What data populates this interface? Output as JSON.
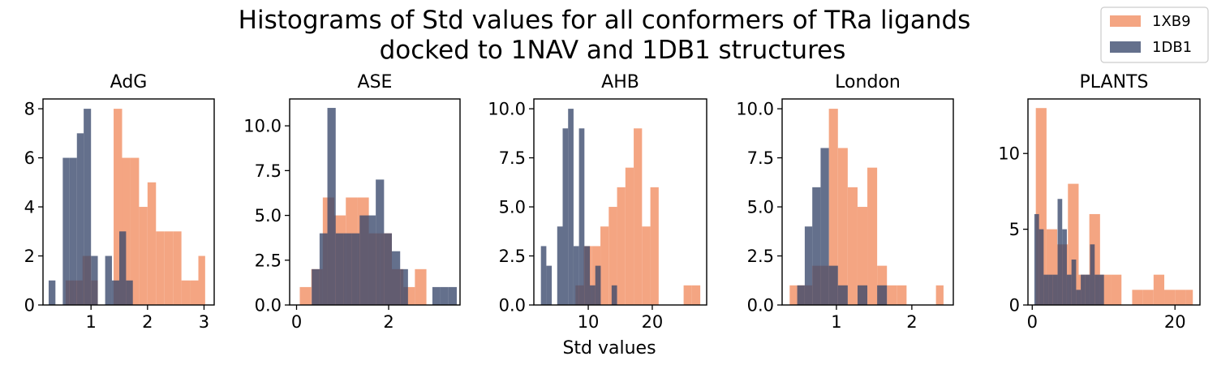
{
  "figure": {
    "title_lines": [
      "Histograms of Std values for all conformers of TRa ligands",
      "docked to 1NAV and 1DB1 structures"
    ],
    "xlabel": "Std values",
    "legend_position": "top-right"
  },
  "colors": {
    "1XB9": "#f4a582",
    "1DB1": "#39486b",
    "overlap": "#6e4b5c"
  },
  "legend": [
    {
      "name": "1XB9",
      "color": "#f4a582"
    },
    {
      "name": "1DB1",
      "color": "#39486b"
    }
  ],
  "chart_data": [
    {
      "type": "histogram",
      "title": "AdG",
      "xlim": [
        0.15,
        3.18
      ],
      "ylim": [
        0,
        8.4
      ],
      "xticks": [
        1,
        2,
        3
      ],
      "yticks": [
        0,
        2,
        4,
        6,
        8
      ],
      "series": [
        {
          "name": "1XB9",
          "bins": [
            [
              0.55,
              0.7,
              1
            ],
            [
              0.7,
              0.85,
              1
            ],
            [
              0.85,
              1.0,
              2
            ],
            [
              1.0,
              1.12,
              1
            ],
            [
              1.12,
              1.25,
              0
            ],
            [
              1.25,
              1.4,
              0
            ],
            [
              1.4,
              1.55,
              8
            ],
            [
              1.55,
              1.7,
              6
            ],
            [
              1.7,
              1.85,
              6
            ],
            [
              1.85,
              2.0,
              4
            ],
            [
              2.0,
              2.15,
              5
            ],
            [
              2.15,
              2.3,
              3
            ],
            [
              2.3,
              2.45,
              3
            ],
            [
              2.45,
              2.6,
              3
            ],
            [
              2.6,
              2.75,
              1
            ],
            [
              2.75,
              2.9,
              1
            ],
            [
              2.9,
              3.02,
              2
            ]
          ]
        },
        {
          "name": "1DB1",
          "bins": [
            [
              0.25,
              0.37,
              1
            ],
            [
              0.37,
              0.5,
              0
            ],
            [
              0.5,
              0.62,
              6
            ],
            [
              0.62,
              0.75,
              6
            ],
            [
              0.75,
              0.87,
              7
            ],
            [
              0.87,
              1.0,
              8
            ],
            [
              1.0,
              1.12,
              2
            ],
            [
              1.12,
              1.25,
              0
            ],
            [
              1.25,
              1.37,
              2
            ],
            [
              1.37,
              1.5,
              1
            ],
            [
              1.5,
              1.62,
              3
            ],
            [
              1.62,
              1.74,
              1
            ]
          ]
        }
      ]
    },
    {
      "type": "histogram",
      "title": "ASE",
      "xlim": [
        -0.15,
        3.55
      ],
      "ylim": [
        0,
        11.5
      ],
      "xticks": [
        0,
        2
      ],
      "yticks": [
        0.0,
        2.5,
        5.0,
        7.5,
        10.0
      ],
      "series": [
        {
          "name": "1XB9",
          "bins": [
            [
              0.07,
              0.32,
              1
            ],
            [
              0.32,
              0.57,
              2
            ],
            [
              0.57,
              0.82,
              6
            ],
            [
              0.82,
              1.07,
              5
            ],
            [
              1.07,
              1.32,
              6
            ],
            [
              1.32,
              1.57,
              6
            ],
            [
              1.57,
              1.82,
              4
            ],
            [
              1.82,
              2.07,
              4
            ],
            [
              2.07,
              2.32,
              2
            ],
            [
              2.32,
              2.57,
              1
            ],
            [
              2.57,
              2.82,
              2
            ],
            [
              2.82,
              3.07,
              0
            ]
          ]
        },
        {
          "name": "1DB1",
          "bins": [
            [
              0.33,
              0.5,
              2
            ],
            [
              0.5,
              0.67,
              4
            ],
            [
              0.67,
              0.85,
              11
            ],
            [
              0.85,
              1.02,
              4
            ],
            [
              1.02,
              1.2,
              4
            ],
            [
              1.2,
              1.37,
              4
            ],
            [
              1.37,
              1.55,
              5
            ],
            [
              1.55,
              1.72,
              5
            ],
            [
              1.72,
              1.9,
              7
            ],
            [
              1.9,
              2.07,
              4
            ],
            [
              2.07,
              2.25,
              3
            ],
            [
              2.25,
              2.42,
              2
            ],
            [
              2.42,
              2.6,
              0
            ],
            [
              2.6,
              2.77,
              0
            ],
            [
              2.77,
              2.95,
              0
            ],
            [
              2.95,
              3.12,
              1
            ],
            [
              3.12,
              3.3,
              1
            ],
            [
              3.3,
              3.48,
              1
            ]
          ]
        }
      ]
    },
    {
      "type": "histogram",
      "title": "AHB",
      "xlim": [
        1.5,
        28.5
      ],
      "ylim": [
        0,
        10.5
      ],
      "xticks": [
        10,
        20
      ],
      "yticks": [
        0.0,
        2.5,
        5.0,
        7.5,
        10.0
      ],
      "series": [
        {
          "name": "1XB9",
          "bins": [
            [
              8.0,
              9.3,
              1
            ],
            [
              9.3,
              10.6,
              3
            ],
            [
              10.6,
              11.9,
              3
            ],
            [
              11.9,
              13.2,
              4
            ],
            [
              13.2,
              14.5,
              5
            ],
            [
              14.5,
              15.8,
              6
            ],
            [
              15.8,
              17.1,
              7
            ],
            [
              17.1,
              18.4,
              9
            ],
            [
              18.4,
              19.7,
              4
            ],
            [
              19.7,
              21.0,
              6
            ],
            [
              21.0,
              22.3,
              0
            ],
            [
              22.3,
              23.6,
              0
            ],
            [
              23.6,
              24.9,
              0
            ],
            [
              24.9,
              26.2,
              1
            ],
            [
              26.2,
              27.5,
              1
            ]
          ]
        },
        {
          "name": "1DB1",
          "bins": [
            [
              2.6,
              3.45,
              3
            ],
            [
              3.45,
              4.3,
              2
            ],
            [
              4.3,
              5.15,
              0
            ],
            [
              5.15,
              6.0,
              4
            ],
            [
              6.0,
              6.85,
              9
            ],
            [
              6.85,
              7.7,
              10
            ],
            [
              7.7,
              8.55,
              3
            ],
            [
              8.55,
              9.4,
              9
            ],
            [
              9.4,
              10.25,
              3
            ],
            [
              10.25,
              11.1,
              1
            ],
            [
              11.1,
              11.95,
              2
            ],
            [
              11.95,
              12.8,
              0
            ],
            [
              12.8,
              13.65,
              0
            ],
            [
              13.65,
              14.5,
              1
            ]
          ]
        }
      ]
    },
    {
      "type": "histogram",
      "title": "London",
      "xlim": [
        0.28,
        2.55
      ],
      "ylim": [
        0,
        10.5
      ],
      "xticks": [
        1,
        2
      ],
      "yticks": [
        0.0,
        2.5,
        5.0,
        7.5,
        10.0
      ],
      "series": [
        {
          "name": "1XB9",
          "bins": [
            [
              0.38,
              0.48,
              1
            ],
            [
              0.48,
              0.58,
              1
            ],
            [
              0.58,
              0.68,
              1
            ],
            [
              0.68,
              0.79,
              2
            ],
            [
              0.79,
              0.9,
              2
            ],
            [
              0.9,
              1.02,
              10
            ],
            [
              1.02,
              1.15,
              8
            ],
            [
              1.15,
              1.28,
              6
            ],
            [
              1.28,
              1.41,
              5
            ],
            [
              1.41,
              1.54,
              7
            ],
            [
              1.54,
              1.67,
              2
            ],
            [
              1.67,
              1.8,
              1
            ],
            [
              1.8,
              1.93,
              1
            ],
            [
              1.93,
              2.06,
              0
            ],
            [
              2.06,
              2.19,
              0
            ],
            [
              2.19,
              2.32,
              0
            ],
            [
              2.32,
              2.42,
              1
            ]
          ]
        },
        {
          "name": "1DB1",
          "bins": [
            [
              0.48,
              0.58,
              1
            ],
            [
              0.58,
              0.68,
              4
            ],
            [
              0.68,
              0.79,
              6
            ],
            [
              0.79,
              0.9,
              8
            ],
            [
              0.9,
              1.02,
              2
            ],
            [
              1.02,
              1.15,
              1
            ],
            [
              1.15,
              1.28,
              0
            ],
            [
              1.28,
              1.41,
              1
            ],
            [
              1.41,
              1.54,
              0
            ],
            [
              1.54,
              1.67,
              1
            ],
            [
              1.67,
              1.8,
              0
            ]
          ]
        }
      ]
    },
    {
      "type": "histogram",
      "title": "PLANTS",
      "xlim": [
        -0.6,
        23.5
      ],
      "ylim": [
        0,
        13.6
      ],
      "xticks": [
        0,
        20
      ],
      "yticks": [
        0,
        5,
        10
      ],
      "series": [
        {
          "name": "1XB9",
          "bins": [
            [
              0.5,
              2.0,
              13
            ],
            [
              2.0,
              3.5,
              5
            ],
            [
              3.5,
              5.0,
              4
            ],
            [
              5.0,
              6.5,
              8
            ],
            [
              6.5,
              8.0,
              2
            ],
            [
              8.0,
              9.5,
              6
            ],
            [
              9.5,
              11.0,
              2
            ],
            [
              11.0,
              12.5,
              2
            ],
            [
              12.5,
              14.0,
              0
            ],
            [
              14.0,
              15.5,
              1
            ],
            [
              15.5,
              17.0,
              1
            ],
            [
              17.0,
              18.5,
              2
            ],
            [
              18.5,
              20.0,
              1
            ],
            [
              20.0,
              21.5,
              1
            ],
            [
              21.5,
              22.5,
              1
            ]
          ]
        },
        {
          "name": "1DB1",
          "bins": [
            [
              0.3,
              0.95,
              6
            ],
            [
              0.95,
              1.6,
              5
            ],
            [
              1.6,
              2.25,
              2
            ],
            [
              2.25,
              2.9,
              2
            ],
            [
              2.9,
              3.55,
              2
            ],
            [
              3.55,
              4.2,
              7
            ],
            [
              4.2,
              4.85,
              5
            ],
            [
              4.85,
              5.5,
              2
            ],
            [
              5.5,
              6.15,
              3
            ],
            [
              6.15,
              6.8,
              1
            ],
            [
              6.8,
              7.45,
              2
            ],
            [
              7.45,
              8.1,
              2
            ],
            [
              8.1,
              8.75,
              4
            ],
            [
              8.75,
              9.4,
              2
            ],
            [
              9.4,
              10.05,
              2
            ]
          ]
        }
      ]
    }
  ]
}
